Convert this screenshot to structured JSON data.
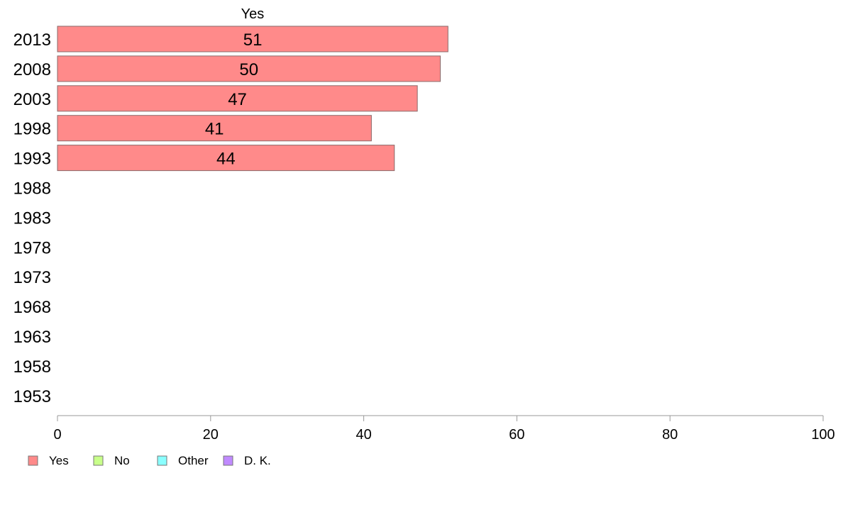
{
  "chart_data": {
    "type": "bar",
    "orientation": "horizontal",
    "title": "Yes",
    "categories": [
      "2013",
      "2008",
      "2003",
      "1998",
      "1993",
      "1988",
      "1983",
      "1978",
      "1973",
      "1968",
      "1963",
      "1958",
      "1953"
    ],
    "series": [
      {
        "name": "Yes",
        "values": [
          51,
          50,
          47,
          41,
          44,
          null,
          null,
          null,
          null,
          null,
          null,
          null,
          null
        ],
        "labels": [
          "51",
          "50",
          "47",
          "41",
          "44"
        ]
      }
    ],
    "xlim": [
      0,
      100
    ],
    "xticks": [
      0,
      20,
      40,
      60,
      80,
      100
    ],
    "xtick_labels": [
      "0",
      "20",
      "40",
      "60",
      "80",
      "100"
    ],
    "xlabel": "",
    "ylabel": "",
    "grid": false,
    "legend": {
      "placement": "bottom-left",
      "entries": [
        {
          "label": "Yes",
          "color": "#ff8a8a"
        },
        {
          "label": "No",
          "color": "#c8ff8a"
        },
        {
          "label": "Other",
          "color": "#8affff"
        },
        {
          "label": "D. K.",
          "color": "#c08aff"
        }
      ]
    },
    "colors": {
      "bar": "#ff8a8a",
      "bar_edge": "#8a6a6a",
      "axis": "#999999"
    }
  }
}
